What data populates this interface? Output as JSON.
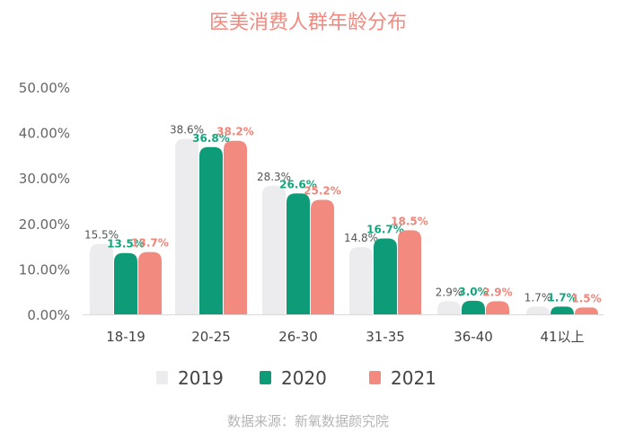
{
  "chart_data": {
    "type": "bar",
    "title": "医美消费人群年龄分布",
    "source": "数据来源：新氧数据颜究院",
    "categories": [
      "18-19",
      "20-25",
      "26-30",
      "31-35",
      "36-40",
      "41以上"
    ],
    "yticks": [
      "0.00%",
      "10.00%",
      "20.00%",
      "30.00%",
      "40.00%",
      "50.00%"
    ],
    "ylim": [
      0,
      50
    ],
    "legend_position": "bottom",
    "grid": false,
    "series": [
      {
        "name": "2019",
        "color": "#ECECEE",
        "label_color": "#555555",
        "values": [
          15.5,
          38.6,
          28.3,
          14.8,
          2.9,
          1.7
        ],
        "labels": [
          "15.5%",
          "38.6%",
          "28.3%",
          "14.8%",
          "2.9%",
          "1.7%"
        ]
      },
      {
        "name": "2020",
        "color": "#0E9B78",
        "label_color": "#15A57D",
        "values": [
          13.5,
          36.8,
          26.6,
          16.7,
          3.0,
          1.7
        ],
        "labels": [
          "13.5%",
          "36.8%",
          "26.6%",
          "16.7%",
          "3.0%",
          "1.7%"
        ]
      },
      {
        "name": "2021",
        "color": "#F38A7F",
        "label_color": "#F0857A",
        "values": [
          13.7,
          38.2,
          25.2,
          18.5,
          2.9,
          1.5
        ],
        "labels": [
          "13.7%",
          "38.2%",
          "25.2%",
          "18.5%",
          "2.9%",
          "1.5%"
        ]
      }
    ],
    "title_color": "#F08A80",
    "axis_text_color": "#666666",
    "source_color": "#B5B5B5"
  }
}
